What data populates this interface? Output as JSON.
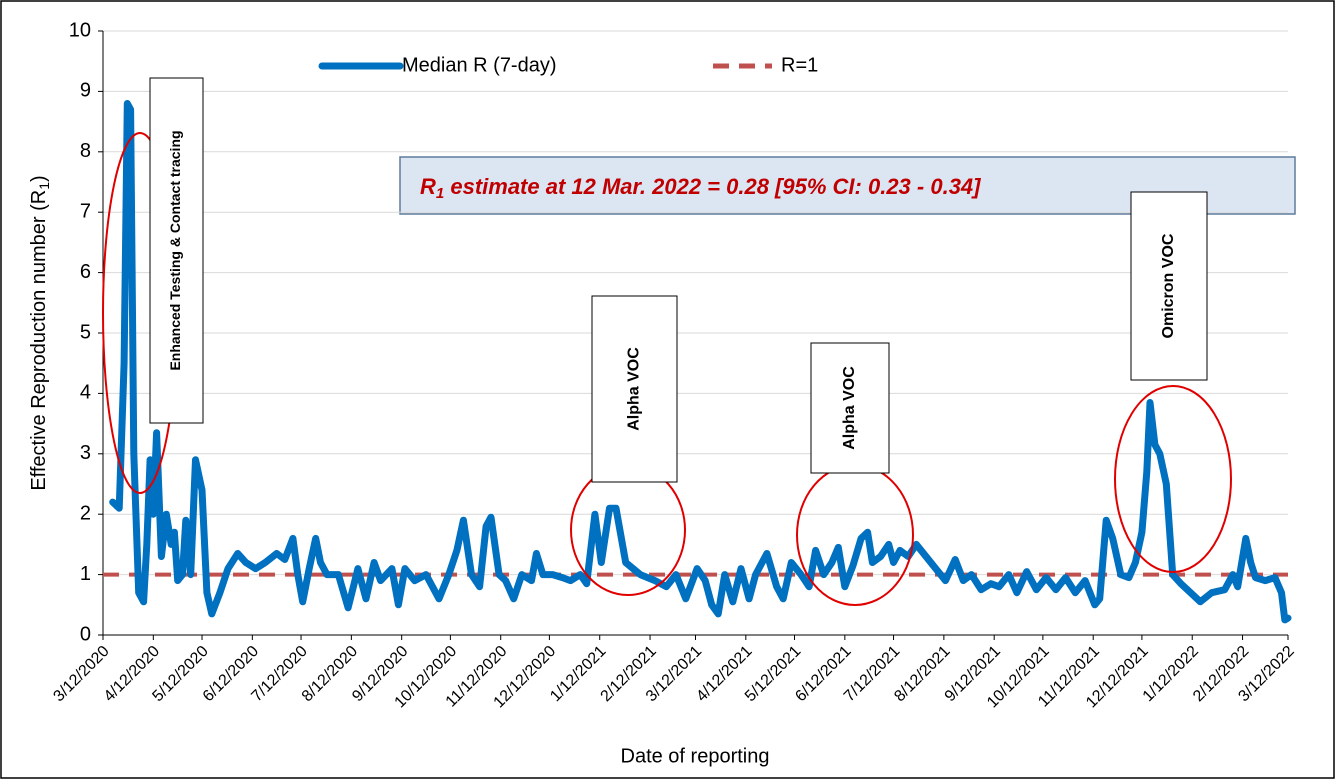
{
  "chart_data": {
    "type": "line",
    "y_label_parts": [
      "Effective Reproduction number (R",
      "1",
      ")"
    ],
    "x_label": "Date of reporting",
    "xlim": [
      "3/12/2020",
      "3/12/2022"
    ],
    "xticks": [
      "3/12/2020",
      "4/12/2020",
      "5/12/2020",
      "6/12/2020",
      "7/12/2020",
      "8/12/2020",
      "9/12/2020",
      "10/12/2020",
      "11/12/2020",
      "12/12/2020",
      "1/12/2021",
      "2/12/2021",
      "3/12/2021",
      "4/12/2021",
      "5/12/2021",
      "6/12/2021",
      "7/12/2021",
      "8/12/2021",
      "9/12/2021",
      "10/12/2021",
      "11/12/2021",
      "12/12/2021",
      "1/12/2022",
      "2/12/2022",
      "3/12/2022"
    ],
    "ylim": [
      0,
      10
    ],
    "yticks": [
      0,
      1,
      2,
      3,
      4,
      5,
      6,
      7,
      8,
      9,
      10
    ],
    "grid": true,
    "x": [
      "3/18/2020",
      "3/22/2020",
      "3/25/2020",
      "3/27/2020",
      "3/29/2020",
      "3/31/2020",
      "4/3/2020",
      "4/6/2020",
      "4/8/2020",
      "4/10/2020",
      "4/12/2020",
      "4/14/2020",
      "4/17/2020",
      "4/20/2020",
      "4/23/2020",
      "4/25/2020",
      "4/27/2020",
      "4/30/2020",
      "5/2/2020",
      "5/5/2020",
      "5/8/2020",
      "5/12/2020",
      "5/15/2020",
      "5/18/2020",
      "5/23/2020",
      "5/28/2020",
      "6/3/2020",
      "6/8/2020",
      "6/14/2020",
      "6/20/2020",
      "6/27/2020",
      "7/2/2020",
      "7/7/2020",
      "7/10/2020",
      "7/13/2020",
      "7/17/2020",
      "7/21/2020",
      "7/24/2020",
      "7/28/2020",
      "8/4/2020",
      "8/10/2020",
      "8/16/2020",
      "8/21/2020",
      "8/26/2020",
      "8/30/2020",
      "9/6/2020",
      "9/10/2020",
      "9/14/2020",
      "9/20/2020",
      "9/27/2020",
      "10/5/2020",
      "10/11/2020",
      "10/16/2020",
      "10/20/2020",
      "10/25/2020",
      "10/30/2020",
      "11/3/2020",
      "11/6/2020",
      "11/11/2020",
      "11/15/2020",
      "11/20/2020",
      "11/25/2020",
      "12/1/2020",
      "12/4/2020",
      "12/8/2020",
      "12/14/2020",
      "12/20/2020",
      "12/25/2020",
      "12/31/2020",
      "1/4/2021",
      "1/9/2021",
      "1/13/2021",
      "1/18/2021",
      "1/22/2021",
      "1/28/2021",
      "2/6/2021",
      "2/15/2021",
      "2/22/2021",
      "2/28/2021",
      "3/6/2021",
      "3/13/2021",
      "3/18/2021",
      "3/22/2021",
      "3/26/2021",
      "3/30/2021",
      "4/4/2021",
      "4/9/2021",
      "4/14/2021",
      "4/18/2021",
      "4/25/2021",
      "5/1/2021",
      "5/5/2021",
      "5/10/2021",
      "5/16/2021",
      "5/21/2021",
      "5/25/2021",
      "5/30/2021",
      "6/4/2021",
      "6/8/2021",
      "6/12/2021",
      "6/17/2021",
      "6/22/2021",
      "6/26/2021",
      "6/29/2021",
      "7/4/2021",
      "7/9/2021",
      "7/12/2021",
      "7/16/2021",
      "7/21/2021",
      "7/26/2021",
      "8/1/2021",
      "8/7/2021",
      "8/13/2021",
      "8/19/2021",
      "8/24/2021",
      "8/29/2021",
      "9/4/2021",
      "9/10/2021",
      "9/15/2021",
      "9/21/2021",
      "9/26/2021",
      "10/2/2021",
      "10/8/2021",
      "10/14/2021",
      "10/20/2021",
      "10/26/2021",
      "11/1/2021",
      "11/7/2021",
      "11/13/2021",
      "11/16/2021",
      "11/20/2021",
      "11/24/2021",
      "11/29/2021",
      "12/4/2021",
      "12/8/2021",
      "12/12/2021",
      "12/15/2021",
      "12/17/2021",
      "12/20/2021",
      "12/23/2021",
      "12/27/2021",
      "12/31/2021",
      "1/5/2022",
      "1/11/2022",
      "1/17/2022",
      "1/24/2022",
      "2/1/2022",
      "2/6/2022",
      "2/9/2022",
      "2/14/2022",
      "2/17/2022",
      "2/20/2022",
      "2/26/2022",
      "3/4/2022",
      "3/8/2022",
      "3/10/2022",
      "3/12/2022"
    ],
    "series": [
      {
        "name": "Median R (7-day)",
        "color": "#0070c0",
        "values": [
          2.2,
          2.1,
          4.5,
          8.8,
          8.7,
          3,
          0.7,
          0.55,
          1.5,
          2.9,
          2.0,
          3.35,
          1.3,
          2.0,
          1.5,
          1.7,
          0.9,
          1.0,
          1.9,
          1.0,
          2.9,
          2.4,
          0.7,
          0.35,
          0.7,
          1.1,
          1.35,
          1.2,
          1.1,
          1.2,
          1.35,
          1.25,
          1.6,
          1.0,
          0.55,
          1.1,
          1.6,
          1.2,
          1.0,
          1.0,
          0.45,
          1.1,
          0.6,
          1.2,
          0.9,
          1.1,
          0.5,
          1.1,
          0.9,
          1.0,
          0.6,
          1.0,
          1.4,
          1.9,
          1.0,
          0.8,
          1.8,
          1.95,
          1.0,
          0.9,
          0.6,
          1.0,
          0.9,
          1.35,
          1.0,
          1.0,
          0.95,
          0.9,
          1.0,
          0.85,
          2.0,
          1.2,
          2.1,
          2.1,
          1.2,
          1.0,
          0.9,
          0.8,
          1.0,
          0.6,
          1.1,
          0.9,
          0.5,
          0.35,
          1.0,
          0.55,
          1.1,
          0.6,
          1.0,
          1.35,
          0.8,
          0.6,
          1.2,
          1.0,
          0.8,
          1.4,
          1.0,
          1.2,
          1.45,
          0.8,
          1.15,
          1.6,
          1.7,
          1.2,
          1.3,
          1.5,
          1.2,
          1.4,
          1.3,
          1.5,
          1.3,
          1.1,
          0.9,
          1.25,
          0.9,
          1.0,
          0.75,
          0.85,
          0.8,
          1.0,
          0.7,
          1.05,
          0.75,
          0.95,
          0.75,
          0.95,
          0.7,
          0.9,
          0.5,
          0.6,
          1.9,
          1.6,
          1.0,
          0.95,
          1.2,
          1.7,
          2.7,
          3.85,
          3.15,
          3.0,
          2.5,
          1.0,
          0.85,
          0.7,
          0.55,
          0.7,
          0.75,
          1.0,
          0.8,
          1.6,
          1.2,
          0.95,
          0.9,
          0.95,
          0.7,
          0.25,
          0.28
        ]
      }
    ],
    "reference_lines": [
      {
        "name": "R=1",
        "value": 1,
        "color": "#c0504d"
      }
    ],
    "info_box_parts": [
      "R",
      "1",
      " estimate at 12 Mar. 2022 = 0.28  [95% CI: 0.23 - 0.34]"
    ],
    "annotations": [
      {
        "label": "Enhanced Testing & Contact tracing"
      },
      {
        "label": "Alpha VOC"
      },
      {
        "label": "Alpha VOC"
      },
      {
        "label": "Omicron VOC"
      }
    ]
  }
}
